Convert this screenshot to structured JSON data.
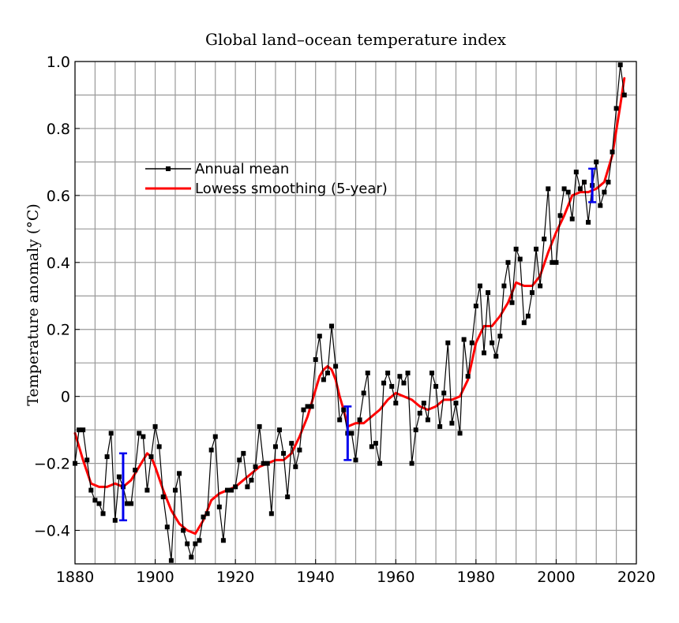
{
  "chart_data": {
    "type": "line",
    "title": "Global land–ocean temperature index",
    "xlabel": "",
    "ylabel": "Temperature anomaly (°C)",
    "xlim": [
      1880,
      2020
    ],
    "ylim": [
      -0.5,
      1.0
    ],
    "x_ticks": [
      1880,
      1900,
      1920,
      1940,
      1960,
      1980,
      2000,
      2020
    ],
    "x_tick_labels": [
      "1880",
      "1900",
      "1920",
      "1940",
      "1960",
      "1980",
      "2000",
      "2020"
    ],
    "y_ticks": [
      -0.4,
      -0.2,
      0.0,
      0.2,
      0.4,
      0.6,
      0.8,
      1.0
    ],
    "y_tick_labels": [
      "−0.4",
      "−0.2",
      "0",
      "0.2",
      "0.4",
      "0.6",
      "0.8",
      "1.0"
    ],
    "grid": true,
    "legend_position": "upper-left",
    "series": [
      {
        "name": "Annual mean",
        "color": "#000000",
        "marker": "square",
        "x": [
          1880,
          1881,
          1882,
          1883,
          1884,
          1885,
          1886,
          1887,
          1888,
          1889,
          1890,
          1891,
          1892,
          1893,
          1894,
          1895,
          1896,
          1897,
          1898,
          1899,
          1900,
          1901,
          1902,
          1903,
          1904,
          1905,
          1906,
          1907,
          1908,
          1909,
          1910,
          1911,
          1912,
          1913,
          1914,
          1915,
          1916,
          1917,
          1918,
          1919,
          1920,
          1921,
          1922,
          1923,
          1924,
          1925,
          1926,
          1927,
          1928,
          1929,
          1930,
          1931,
          1932,
          1933,
          1934,
          1935,
          1936,
          1937,
          1938,
          1939,
          1940,
          1941,
          1942,
          1943,
          1944,
          1945,
          1946,
          1947,
          1948,
          1949,
          1950,
          1951,
          1952,
          1953,
          1954,
          1955,
          1956,
          1957,
          1958,
          1959,
          1960,
          1961,
          1962,
          1963,
          1964,
          1965,
          1966,
          1967,
          1968,
          1969,
          1970,
          1971,
          1972,
          1973,
          1974,
          1975,
          1976,
          1977,
          1978,
          1979,
          1980,
          1981,
          1982,
          1983,
          1984,
          1985,
          1986,
          1987,
          1988,
          1989,
          1990,
          1991,
          1992,
          1993,
          1994,
          1995,
          1996,
          1997,
          1998,
          1999,
          2000,
          2001,
          2002,
          2003,
          2004,
          2005,
          2006,
          2007,
          2008,
          2009,
          2010,
          2011,
          2012,
          2013,
          2014,
          2015,
          2016,
          2017
        ],
        "y": [
          -0.2,
          -0.1,
          -0.1,
          -0.19,
          -0.28,
          -0.31,
          -0.32,
          -0.35,
          -0.18,
          -0.11,
          -0.37,
          -0.24,
          -0.27,
          -0.32,
          -0.32,
          -0.22,
          -0.11,
          -0.12,
          -0.28,
          -0.18,
          -0.09,
          -0.15,
          -0.3,
          -0.39,
          -0.49,
          -0.28,
          -0.23,
          -0.4,
          -0.44,
          -0.48,
          -0.44,
          -0.43,
          -0.36,
          -0.35,
          -0.16,
          -0.12,
          -0.33,
          -0.43,
          -0.28,
          -0.28,
          -0.27,
          -0.19,
          -0.17,
          -0.27,
          -0.25,
          -0.21,
          -0.09,
          -0.2,
          -0.2,
          -0.35,
          -0.15,
          -0.1,
          -0.17,
          -0.3,
          -0.14,
          -0.21,
          -0.16,
          -0.04,
          -0.03,
          -0.03,
          0.11,
          0.18,
          0.05,
          0.07,
          0.21,
          0.09,
          -0.07,
          -0.04,
          -0.11,
          -0.11,
          -0.19,
          -0.07,
          0.01,
          0.07,
          -0.15,
          -0.14,
          -0.2,
          0.04,
          0.07,
          0.03,
          -0.02,
          0.06,
          0.04,
          0.07,
          -0.2,
          -0.1,
          -0.05,
          -0.02,
          -0.07,
          0.07,
          0.03,
          -0.09,
          0.01,
          0.16,
          -0.08,
          -0.02,
          -0.11,
          0.17,
          0.06,
          0.16,
          0.27,
          0.33,
          0.13,
          0.31,
          0.16,
          0.12,
          0.18,
          0.33,
          0.4,
          0.28,
          0.44,
          0.41,
          0.22,
          0.24,
          0.31,
          0.44,
          0.33,
          0.47,
          0.62,
          0.4,
          0.4,
          0.54,
          0.62,
          0.61,
          0.53,
          0.67,
          0.62,
          0.64,
          0.52,
          0.63,
          0.7,
          0.57,
          0.61,
          0.64,
          0.73,
          0.86,
          0.99,
          0.9
        ]
      },
      {
        "name": "Lowess smoothing (5-year)",
        "color": "#ff0000",
        "x": [
          1880,
          1882,
          1884,
          1886,
          1888,
          1890,
          1892,
          1894,
          1896,
          1897,
          1898,
          1899,
          1900,
          1902,
          1904,
          1906,
          1908,
          1910,
          1912,
          1914,
          1916,
          1918,
          1920,
          1922,
          1924,
          1926,
          1928,
          1930,
          1932,
          1934,
          1936,
          1938,
          1940,
          1941,
          1942,
          1943,
          1944,
          1945,
          1946,
          1947,
          1948,
          1950,
          1952,
          1954,
          1956,
          1958,
          1960,
          1962,
          1964,
          1966,
          1968,
          1970,
          1972,
          1974,
          1976,
          1978,
          1980,
          1982,
          1984,
          1986,
          1988,
          1990,
          1992,
          1994,
          1996,
          1998,
          2000,
          2002,
          2004,
          2006,
          2008,
          2010,
          2012,
          2014,
          2016,
          2017
        ],
        "y": [
          -0.11,
          -0.19,
          -0.26,
          -0.27,
          -0.27,
          -0.26,
          -0.27,
          -0.25,
          -0.21,
          -0.19,
          -0.17,
          -0.18,
          -0.21,
          -0.28,
          -0.34,
          -0.38,
          -0.4,
          -0.41,
          -0.37,
          -0.31,
          -0.29,
          -0.28,
          -0.27,
          -0.25,
          -0.23,
          -0.21,
          -0.2,
          -0.19,
          -0.19,
          -0.17,
          -0.12,
          -0.06,
          0.02,
          0.06,
          0.08,
          0.09,
          0.08,
          0.05,
          0.0,
          -0.04,
          -0.09,
          -0.08,
          -0.08,
          -0.06,
          -0.04,
          -0.01,
          0.01,
          0.0,
          -0.01,
          -0.03,
          -0.04,
          -0.03,
          -0.01,
          -0.01,
          0.0,
          0.05,
          0.16,
          0.21,
          0.21,
          0.24,
          0.28,
          0.34,
          0.33,
          0.33,
          0.36,
          0.43,
          0.49,
          0.54,
          0.6,
          0.61,
          0.61,
          0.62,
          0.64,
          0.72,
          0.87,
          0.95
        ]
      }
    ],
    "error_bars": [
      {
        "x": 1892,
        "y": -0.27,
        "low": -0.37,
        "high": -0.17
      },
      {
        "x": 1948,
        "y": -0.11,
        "low": -0.19,
        "high": -0.03
      },
      {
        "x": 2009,
        "y": 0.63,
        "low": 0.58,
        "high": 0.68
      }
    ],
    "error_bar_color": "#0000ee"
  }
}
